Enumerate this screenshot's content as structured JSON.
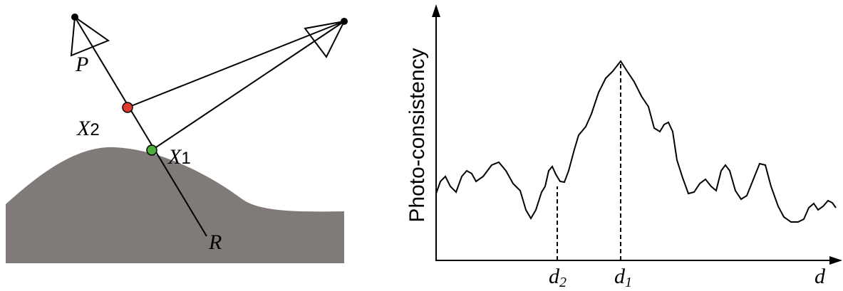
{
  "left_diagram": {
    "camera_label": "P",
    "points": [
      {
        "base": "X",
        "sub": "2"
      },
      {
        "base": "X",
        "sub": "1"
      }
    ],
    "ray_label": "R"
  },
  "right_plot": {
    "y_axis_label": "Photo-consistency",
    "markers": [
      {
        "base": "d",
        "sub": "2"
      },
      {
        "base": "d",
        "sub": "1"
      }
    ],
    "x_axis_label": "d"
  }
}
